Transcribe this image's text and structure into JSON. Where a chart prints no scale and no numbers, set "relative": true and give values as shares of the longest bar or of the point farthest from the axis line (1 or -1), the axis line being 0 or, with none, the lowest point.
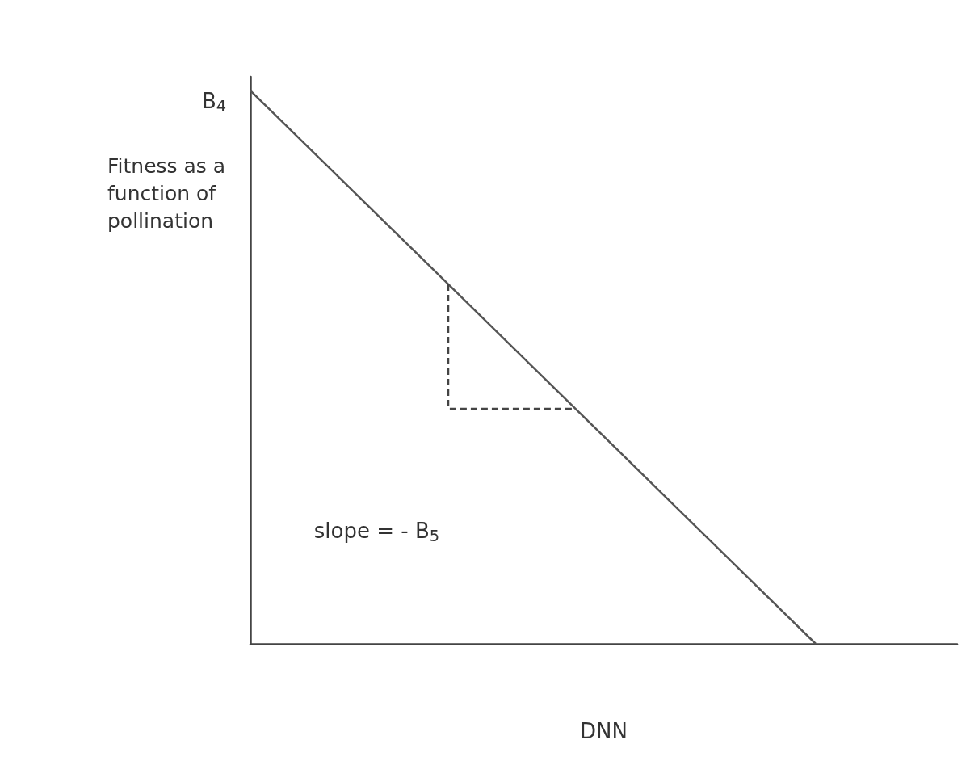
{
  "chart_data": {
    "type": "line",
    "relative": true,
    "xlabel": "DNN",
    "ylabel": "Fitness as a function of pollination",
    "categories": [
      null,
      null,
      null,
      null,
      null,
      null
    ],
    "series": [
      {
        "color": "#555555",
        "values": [
          1,
          0.75,
          0.5,
          0.25,
          0,
          null
        ]
      }
    ],
    "annotations": [
      "B$_{4}$",
      "slope = - B$_{5}$"
    ],
    "grid": false,
    "marker": "none",
    "line_style": "solid"
  }
}
